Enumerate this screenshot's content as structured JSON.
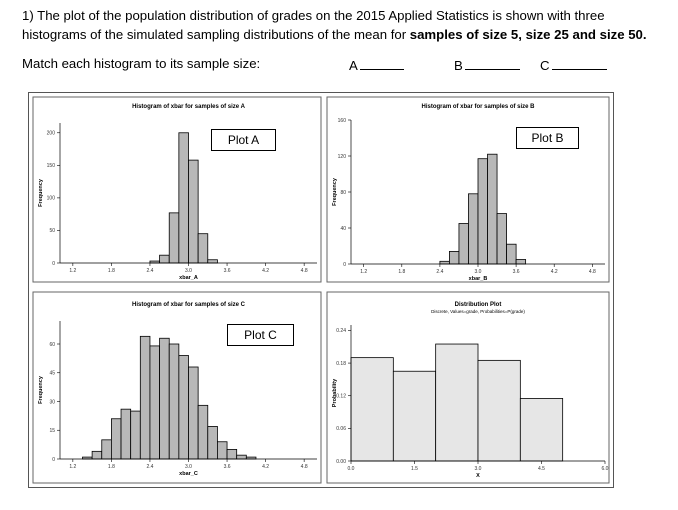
{
  "question": {
    "prefix": "1) The plot of the population distribution of grades on the 2015 Applied Statistics is shown with three histograms of the simulated sampling distributions of the mean for ",
    "bold": "samples of size 5, size 25 and size 50.",
    "match_prompt": "Match each histogram to its sample size:",
    "blanks": [
      "A",
      "B",
      "C"
    ]
  },
  "plot_labels": [
    "Plot A",
    "Plot B",
    "Plot C"
  ],
  "chart_data": [
    {
      "type": "bar",
      "title": "Histogram of xbar for samples of size A",
      "xlabel": "xbar_A",
      "ylabel": "Frequency",
      "xticks": [
        "1.2",
        "1.8",
        "2.4",
        "3.0",
        "3.6",
        "4.2",
        "4.8"
      ],
      "yticks": [
        "0",
        "50",
        "100",
        "150",
        "200"
      ],
      "xlim": [
        1.0,
        5.0
      ],
      "ylim": [
        0,
        215
      ],
      "bin_width": 0.15,
      "bin_starts": [
        2.4,
        2.55,
        2.7,
        2.85,
        3.0,
        3.15,
        3.3
      ],
      "values": [
        3,
        12,
        77,
        200,
        158,
        45,
        5
      ],
      "bar_color": "#b8b8b8",
      "label": "Plot A"
    },
    {
      "type": "bar",
      "title": "Histogram of xbar for samples of size B",
      "xlabel": "xbar_B",
      "ylabel": "Frequency",
      "xticks": [
        "1.2",
        "1.8",
        "2.4",
        "3.0",
        "3.6",
        "4.2",
        "4.8"
      ],
      "yticks": [
        "0",
        "40",
        "80",
        "120",
        "160"
      ],
      "xlim": [
        1.0,
        5.0
      ],
      "ylim": [
        0,
        160
      ],
      "bin_width": 0.15,
      "bin_starts": [
        2.4,
        2.55,
        2.7,
        2.85,
        3.0,
        3.15,
        3.3,
        3.45,
        3.6
      ],
      "values": [
        3,
        14,
        45,
        78,
        117,
        122,
        56,
        22,
        5
      ],
      "bar_color": "#b8b8b8",
      "label": "Plot B"
    },
    {
      "type": "bar",
      "title": "Histogram of xbar for samples of size C",
      "xlabel": "xbar_C",
      "ylabel": "Frequency",
      "xticks": [
        "1.2",
        "1.8",
        "2.4",
        "3.0",
        "3.6",
        "4.2",
        "4.8"
      ],
      "yticks": [
        "0",
        "15",
        "30",
        "45",
        "60"
      ],
      "xlim": [
        1.0,
        5.0
      ],
      "ylim": [
        0,
        72
      ],
      "bin_width": 0.15,
      "bin_starts": [
        1.35,
        1.5,
        1.65,
        1.8,
        1.95,
        2.1,
        2.25,
        2.4,
        2.55,
        2.7,
        2.85,
        3.0,
        3.15,
        3.3,
        3.45,
        3.6,
        3.75,
        3.9
      ],
      "values": [
        1,
        4,
        10,
        21,
        26,
        25,
        64,
        59,
        63,
        60,
        54,
        48,
        28,
        17,
        9,
        5,
        2,
        1
      ],
      "bar_color": "#b8b8b8",
      "label": "Plot C"
    },
    {
      "type": "bar",
      "title": "Distribution Plot",
      "subtitle": "Discrete, Values=grade, Probabilities=P(grade)",
      "xlabel": "X",
      "ylabel": "Probability",
      "xticks": [
        "0.0",
        "1.5",
        "3.0",
        "4.5",
        "6.0"
      ],
      "yticks": [
        "0.00",
        "0.06",
        "0.12",
        "0.18",
        "0.24"
      ],
      "xlim": [
        0.0,
        6.0
      ],
      "ylim": [
        0,
        0.25
      ],
      "bin_width": 1.0,
      "bin_starts": [
        0.0,
        1.0,
        2.0,
        3.0,
        4.0
      ],
      "values": [
        0.19,
        0.165,
        0.215,
        0.185,
        0.115
      ],
      "bar_color": "#e6e6e6",
      "label": ""
    }
  ]
}
